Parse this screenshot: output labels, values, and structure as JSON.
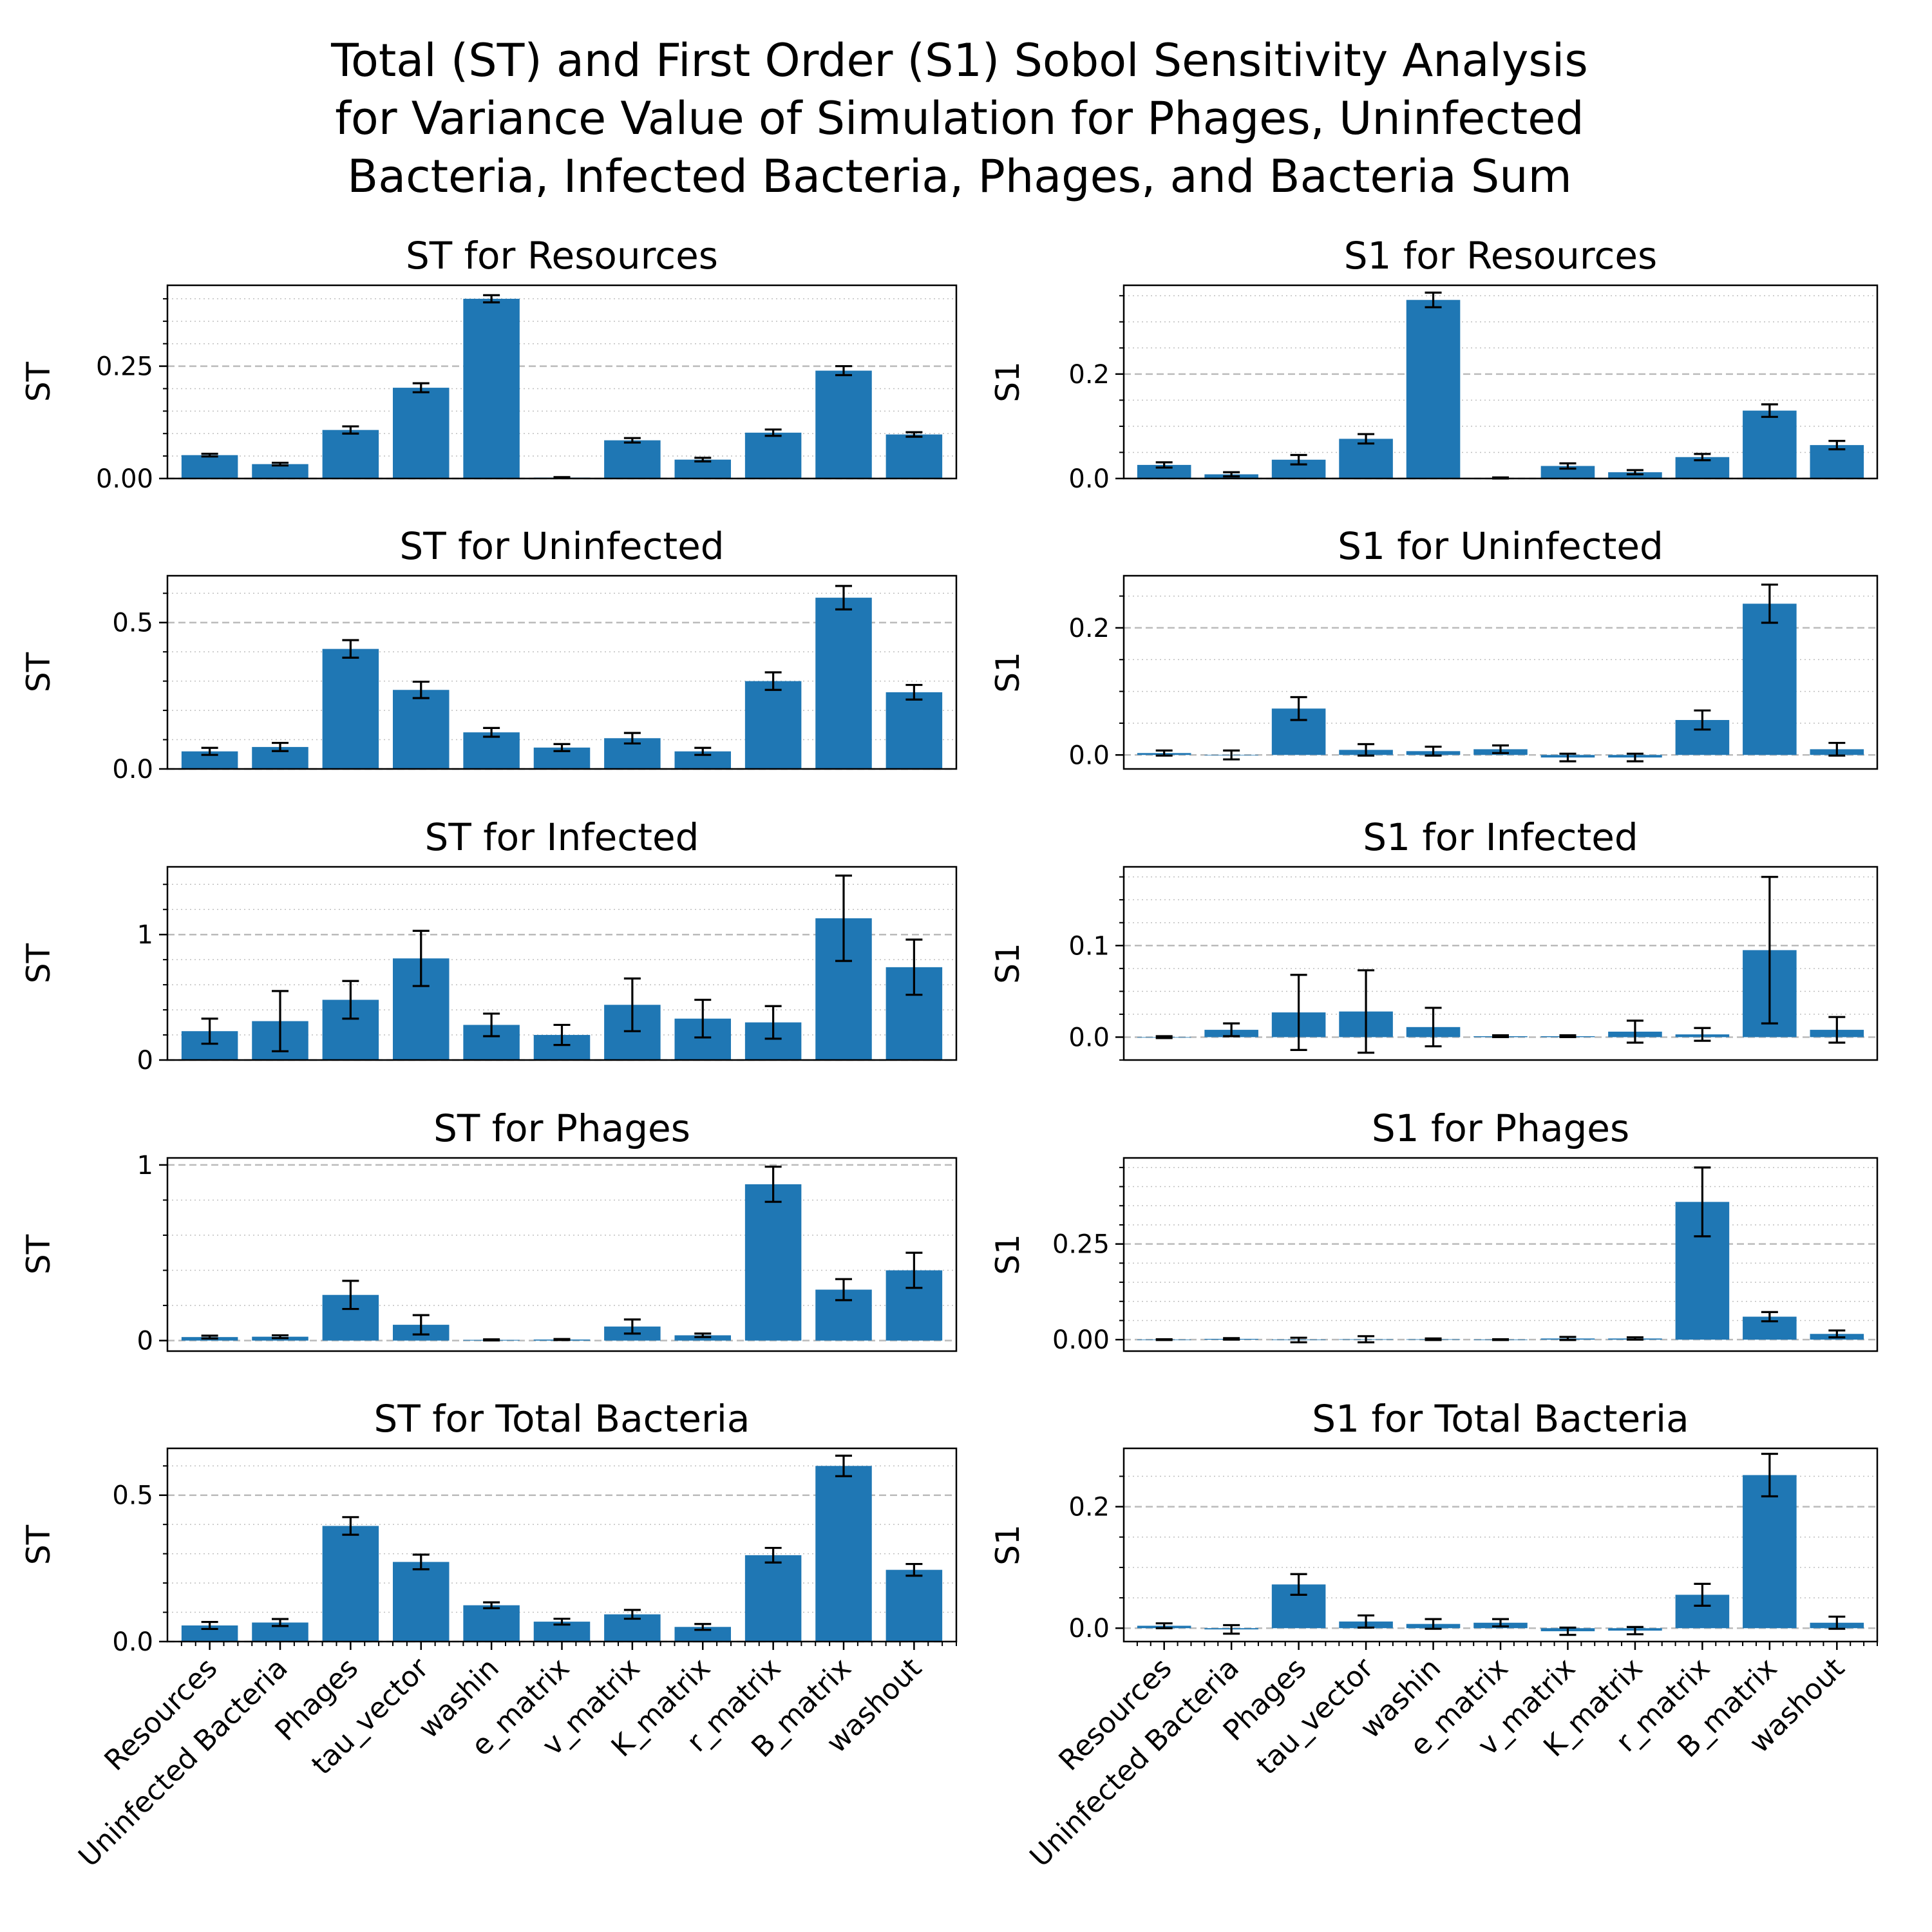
{
  "figure": {
    "title_lines": [
      "Total (ST) and First Order (S1) Sobol Sensitivity Analysis",
      "for Variance Value of Simulation for Phages, Uninfected",
      "Bacteria, Infected Bacteria, Phages, and Bacteria Sum"
    ]
  },
  "chart_data": [
    {
      "type": "bar",
      "title": "ST for Resources",
      "ylabel": "ST",
      "categories": [
        "Resources",
        "Uninfected Bacteria",
        "Phages",
        "tau_vector",
        "washin",
        "e_matrix",
        "v_matrix",
        "K_matrix",
        "r_matrix",
        "B_matrix",
        "washout"
      ],
      "values": [
        0.052,
        0.032,
        0.108,
        0.202,
        0.4,
        0.002,
        0.085,
        0.042,
        0.102,
        0.24,
        0.098
      ],
      "errors": [
        0.003,
        0.003,
        0.008,
        0.01,
        0.008,
        0.001,
        0.005,
        0.004,
        0.007,
        0.01,
        0.005
      ],
      "ylim": [
        0,
        0.43
      ],
      "yticks": [
        0,
        0.25
      ],
      "ytick_labels": [
        "0.00",
        "0.25"
      ],
      "minor_step": 0.05,
      "grid": "horizontal dashed major, dotted minor"
    },
    {
      "type": "bar",
      "title": "S1 for Resources",
      "ylabel": "S1",
      "categories": [
        "Resources",
        "Uninfected Bacteria",
        "Phages",
        "tau_vector",
        "washin",
        "e_matrix",
        "v_matrix",
        "K_matrix",
        "r_matrix",
        "B_matrix",
        "washout"
      ],
      "values": [
        0.026,
        0.008,
        0.036,
        0.076,
        0.342,
        0.001,
        0.024,
        0.012,
        0.041,
        0.13,
        0.064
      ],
      "errors": [
        0.005,
        0.004,
        0.009,
        0.009,
        0.014,
        0.001,
        0.005,
        0.004,
        0.006,
        0.012,
        0.008
      ],
      "ylim": [
        0,
        0.37
      ],
      "yticks": [
        0,
        0.2
      ],
      "ytick_labels": [
        "0.0",
        "0.2"
      ],
      "minor_step": 0.05,
      "grid": "horizontal dashed major, dotted minor"
    },
    {
      "type": "bar",
      "title": "ST for Uninfected",
      "ylabel": "ST",
      "categories": [
        "Resources",
        "Uninfected Bacteria",
        "Phages",
        "tau_vector",
        "washin",
        "e_matrix",
        "v_matrix",
        "K_matrix",
        "r_matrix",
        "B_matrix",
        "washout"
      ],
      "values": [
        0.06,
        0.075,
        0.41,
        0.27,
        0.125,
        0.073,
        0.105,
        0.06,
        0.3,
        0.585,
        0.262
      ],
      "errors": [
        0.012,
        0.014,
        0.03,
        0.028,
        0.015,
        0.012,
        0.018,
        0.012,
        0.03,
        0.04,
        0.025
      ],
      "ylim": [
        0,
        0.66
      ],
      "yticks": [
        0,
        0.5
      ],
      "ytick_labels": [
        "0.0",
        "0.5"
      ],
      "minor_step": 0.1,
      "grid": "horizontal dashed major, dotted minor"
    },
    {
      "type": "bar",
      "title": "S1 for Uninfected",
      "ylabel": "S1",
      "categories": [
        "Resources",
        "Uninfected Bacteria",
        "Phages",
        "tau_vector",
        "washin",
        "e_matrix",
        "v_matrix",
        "K_matrix",
        "r_matrix",
        "B_matrix",
        "washout"
      ],
      "values": [
        0.003,
        0.0,
        0.073,
        0.008,
        0.006,
        0.009,
        -0.004,
        -0.004,
        0.055,
        0.238,
        0.009
      ],
      "errors": [
        0.004,
        0.007,
        0.018,
        0.009,
        0.007,
        0.006,
        0.006,
        0.006,
        0.015,
        0.03,
        0.01
      ],
      "ylim": [
        -0.022,
        0.282
      ],
      "yticks": [
        0,
        0.2
      ],
      "ytick_labels": [
        "0.0",
        "0.2"
      ],
      "minor_step": 0.05,
      "grid": "horizontal dashed major, dotted minor"
    },
    {
      "type": "bar",
      "title": "ST for Infected",
      "ylabel": "ST",
      "categories": [
        "Resources",
        "Uninfected Bacteria",
        "Phages",
        "tau_vector",
        "washin",
        "e_matrix",
        "v_matrix",
        "K_matrix",
        "r_matrix",
        "B_matrix",
        "washout"
      ],
      "values": [
        0.23,
        0.31,
        0.48,
        0.81,
        0.28,
        0.2,
        0.44,
        0.33,
        0.3,
        1.13,
        0.74
      ],
      "errors": [
        0.1,
        0.24,
        0.15,
        0.22,
        0.09,
        0.08,
        0.21,
        0.15,
        0.13,
        0.34,
        0.22
      ],
      "ylim": [
        0,
        1.54
      ],
      "yticks": [
        0,
        1
      ],
      "ytick_labels": [
        "0",
        "1"
      ],
      "minor_step": 0.2,
      "grid": "horizontal dashed major, dotted minor"
    },
    {
      "type": "bar",
      "title": "S1 for Infected",
      "ylabel": "S1",
      "categories": [
        "Resources",
        "Uninfected Bacteria",
        "Phages",
        "tau_vector",
        "washin",
        "e_matrix",
        "v_matrix",
        "K_matrix",
        "r_matrix",
        "B_matrix",
        "washout"
      ],
      "values": [
        0.0,
        0.008,
        0.027,
        0.028,
        0.011,
        0.001,
        0.001,
        0.006,
        0.003,
        0.095,
        0.008
      ],
      "errors": [
        0.001,
        0.007,
        0.041,
        0.045,
        0.021,
        0.001,
        0.001,
        0.012,
        0.007,
        0.08,
        0.014
      ],
      "ylim": [
        -0.025,
        0.186
      ],
      "yticks": [
        0,
        0.1
      ],
      "ytick_labels": [
        "0.0",
        "0.1"
      ],
      "minor_step": 0.025,
      "grid": "horizontal dashed major, dotted minor"
    },
    {
      "type": "bar",
      "title": "ST for Phages",
      "ylabel": "ST",
      "categories": [
        "Resources",
        "Uninfected Bacteria",
        "Phages",
        "tau_vector",
        "washin",
        "e_matrix",
        "v_matrix",
        "K_matrix",
        "r_matrix",
        "B_matrix",
        "washout"
      ],
      "values": [
        0.02,
        0.022,
        0.26,
        0.09,
        0.004,
        0.006,
        0.08,
        0.03,
        0.89,
        0.29,
        0.4
      ],
      "errors": [
        0.008,
        0.008,
        0.08,
        0.055,
        0.003,
        0.003,
        0.04,
        0.01,
        0.1,
        0.06,
        0.1
      ],
      "ylim": [
        -0.06,
        1.04
      ],
      "yticks": [
        0,
        1
      ],
      "ytick_labels": [
        "0",
        "1"
      ],
      "minor_step": 0.2,
      "grid": "horizontal dashed major, dotted minor"
    },
    {
      "type": "bar",
      "title": "S1 for Phages",
      "ylabel": "S1",
      "categories": [
        "Resources",
        "Uninfected Bacteria",
        "Phages",
        "tau_vector",
        "washin",
        "e_matrix",
        "v_matrix",
        "K_matrix",
        "r_matrix",
        "B_matrix",
        "washout"
      ],
      "values": [
        0.0,
        0.002,
        -0.001,
        0.001,
        0.001,
        0.0,
        0.003,
        0.003,
        0.36,
        0.06,
        0.015
      ],
      "errors": [
        0.001,
        0.002,
        0.006,
        0.008,
        0.002,
        0.001,
        0.004,
        0.003,
        0.09,
        0.012,
        0.009
      ],
      "ylim": [
        -0.03,
        0.475
      ],
      "yticks": [
        0,
        0.25
      ],
      "ytick_labels": [
        "0.00",
        "0.25"
      ],
      "minor_step": 0.05,
      "grid": "horizontal dashed major, dotted minor"
    },
    {
      "type": "bar",
      "title": "ST for Total Bacteria",
      "ylabel": "ST",
      "categories": [
        "Resources",
        "Uninfected Bacteria",
        "Phages",
        "tau_vector",
        "washin",
        "e_matrix",
        "v_matrix",
        "K_matrix",
        "r_matrix",
        "B_matrix",
        "washout"
      ],
      "values": [
        0.055,
        0.065,
        0.395,
        0.272,
        0.124,
        0.068,
        0.093,
        0.05,
        0.295,
        0.6,
        0.245
      ],
      "errors": [
        0.012,
        0.012,
        0.03,
        0.025,
        0.01,
        0.01,
        0.015,
        0.01,
        0.025,
        0.035,
        0.02
      ],
      "ylim": [
        0,
        0.66
      ],
      "yticks": [
        0,
        0.5
      ],
      "ytick_labels": [
        "0.0",
        "0.5"
      ],
      "minor_step": 0.1,
      "grid": "horizontal dashed major, dotted minor"
    },
    {
      "type": "bar",
      "title": "S1 for Total Bacteria",
      "ylabel": "S1",
      "categories": [
        "Resources",
        "Uninfected Bacteria",
        "Phages",
        "tau_vector",
        "washin",
        "e_matrix",
        "v_matrix",
        "K_matrix",
        "r_matrix",
        "B_matrix",
        "washout"
      ],
      "values": [
        0.004,
        -0.002,
        0.072,
        0.011,
        0.007,
        0.009,
        -0.005,
        -0.004,
        0.055,
        0.252,
        0.009
      ],
      "errors": [
        0.004,
        0.007,
        0.017,
        0.01,
        0.008,
        0.006,
        0.006,
        0.006,
        0.018,
        0.035,
        0.01
      ],
      "ylim": [
        -0.022,
        0.296
      ],
      "yticks": [
        0,
        0.2
      ],
      "ytick_labels": [
        "0.0",
        "0.2"
      ],
      "minor_step": 0.05,
      "grid": "horizontal dashed major, dotted minor"
    }
  ],
  "colors": {
    "bar": "#1f77b4",
    "error_bar": "#000000",
    "grid": "#b0b0b0",
    "axes": "#000000"
  }
}
